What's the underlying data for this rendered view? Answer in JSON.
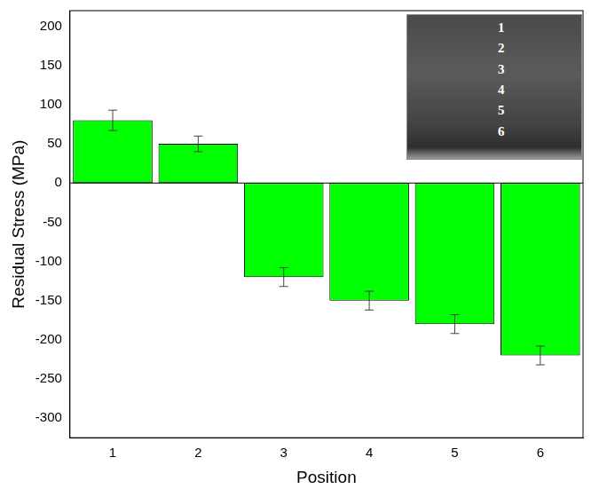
{
  "chart_data": {
    "type": "bar",
    "x_label": "Position",
    "y_label": "Residual Stress (MPa)",
    "categories": [
      "1",
      "2",
      "3",
      "4",
      "5",
      "6"
    ],
    "values": [
      80,
      50,
      -120,
      -150,
      -180,
      -220
    ],
    "errors": [
      13,
      10,
      12,
      12,
      12,
      12
    ],
    "color": "#00ff00",
    "ylim": [
      -325,
      220
    ],
    "yticks": [
      -300,
      -250,
      -200,
      -150,
      -100,
      -50,
      0,
      50,
      100,
      150,
      200
    ],
    "grid": false,
    "inset_labels": [
      "1",
      "2",
      "3",
      "4",
      "5",
      "6"
    ]
  }
}
